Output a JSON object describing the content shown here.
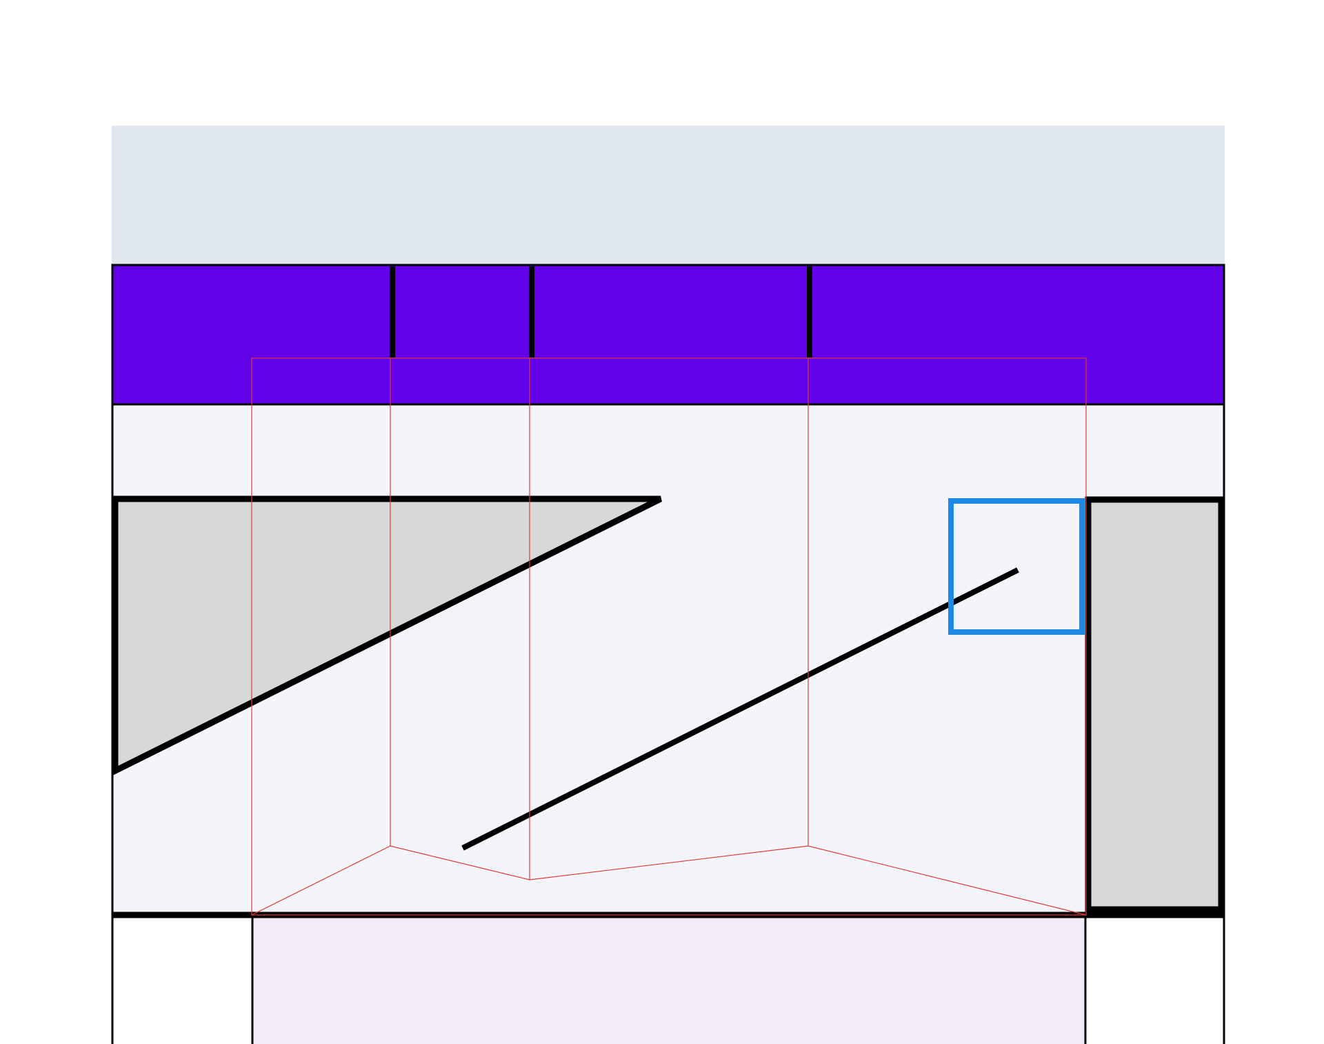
{
  "colors": {
    "page_background": "#ffffff",
    "header_band": "#dfe6ee",
    "accent_band": "#6200ea",
    "canvas_area": "#f3f5fb",
    "panel_fill": "#d8d8d8",
    "footer_center": "#f1ecf8",
    "footer_side": "#ffffff",
    "outline": "#000000",
    "guide_lines": "#e53935",
    "selection_box": "#1e88e5"
  }
}
